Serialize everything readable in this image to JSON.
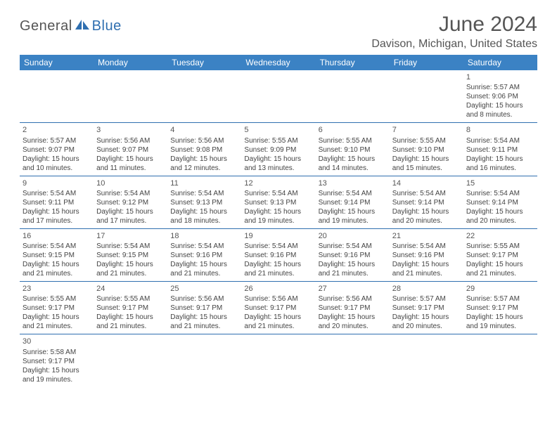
{
  "logo": {
    "text1": "General",
    "text2": "Blue"
  },
  "title": "June 2024",
  "location": "Davison, Michigan, United States",
  "colors": {
    "header_bg": "#3b82c4",
    "header_text": "#ffffff",
    "rule": "#2f6fb0",
    "title_color": "#555555",
    "body_text": "#333333",
    "logo_gray": "#555555",
    "logo_blue": "#2f6fb0"
  },
  "weekdays": [
    "Sunday",
    "Monday",
    "Tuesday",
    "Wednesday",
    "Thursday",
    "Friday",
    "Saturday"
  ],
  "leading_blanks": 6,
  "days": [
    {
      "n": 1,
      "sr": "5:57 AM",
      "ss": "9:06 PM",
      "dl": "15 hours and 8 minutes."
    },
    {
      "n": 2,
      "sr": "5:57 AM",
      "ss": "9:07 PM",
      "dl": "15 hours and 10 minutes."
    },
    {
      "n": 3,
      "sr": "5:56 AM",
      "ss": "9:07 PM",
      "dl": "15 hours and 11 minutes."
    },
    {
      "n": 4,
      "sr": "5:56 AM",
      "ss": "9:08 PM",
      "dl": "15 hours and 12 minutes."
    },
    {
      "n": 5,
      "sr": "5:55 AM",
      "ss": "9:09 PM",
      "dl": "15 hours and 13 minutes."
    },
    {
      "n": 6,
      "sr": "5:55 AM",
      "ss": "9:10 PM",
      "dl": "15 hours and 14 minutes."
    },
    {
      "n": 7,
      "sr": "5:55 AM",
      "ss": "9:10 PM",
      "dl": "15 hours and 15 minutes."
    },
    {
      "n": 8,
      "sr": "5:54 AM",
      "ss": "9:11 PM",
      "dl": "15 hours and 16 minutes."
    },
    {
      "n": 9,
      "sr": "5:54 AM",
      "ss": "9:11 PM",
      "dl": "15 hours and 17 minutes."
    },
    {
      "n": 10,
      "sr": "5:54 AM",
      "ss": "9:12 PM",
      "dl": "15 hours and 17 minutes."
    },
    {
      "n": 11,
      "sr": "5:54 AM",
      "ss": "9:13 PM",
      "dl": "15 hours and 18 minutes."
    },
    {
      "n": 12,
      "sr": "5:54 AM",
      "ss": "9:13 PM",
      "dl": "15 hours and 19 minutes."
    },
    {
      "n": 13,
      "sr": "5:54 AM",
      "ss": "9:14 PM",
      "dl": "15 hours and 19 minutes."
    },
    {
      "n": 14,
      "sr": "5:54 AM",
      "ss": "9:14 PM",
      "dl": "15 hours and 20 minutes."
    },
    {
      "n": 15,
      "sr": "5:54 AM",
      "ss": "9:14 PM",
      "dl": "15 hours and 20 minutes."
    },
    {
      "n": 16,
      "sr": "5:54 AM",
      "ss": "9:15 PM",
      "dl": "15 hours and 21 minutes."
    },
    {
      "n": 17,
      "sr": "5:54 AM",
      "ss": "9:15 PM",
      "dl": "15 hours and 21 minutes."
    },
    {
      "n": 18,
      "sr": "5:54 AM",
      "ss": "9:16 PM",
      "dl": "15 hours and 21 minutes."
    },
    {
      "n": 19,
      "sr": "5:54 AM",
      "ss": "9:16 PM",
      "dl": "15 hours and 21 minutes."
    },
    {
      "n": 20,
      "sr": "5:54 AM",
      "ss": "9:16 PM",
      "dl": "15 hours and 21 minutes."
    },
    {
      "n": 21,
      "sr": "5:54 AM",
      "ss": "9:16 PM",
      "dl": "15 hours and 21 minutes."
    },
    {
      "n": 22,
      "sr": "5:55 AM",
      "ss": "9:17 PM",
      "dl": "15 hours and 21 minutes."
    },
    {
      "n": 23,
      "sr": "5:55 AM",
      "ss": "9:17 PM",
      "dl": "15 hours and 21 minutes."
    },
    {
      "n": 24,
      "sr": "5:55 AM",
      "ss": "9:17 PM",
      "dl": "15 hours and 21 minutes."
    },
    {
      "n": 25,
      "sr": "5:56 AM",
      "ss": "9:17 PM",
      "dl": "15 hours and 21 minutes."
    },
    {
      "n": 26,
      "sr": "5:56 AM",
      "ss": "9:17 PM",
      "dl": "15 hours and 21 minutes."
    },
    {
      "n": 27,
      "sr": "5:56 AM",
      "ss": "9:17 PM",
      "dl": "15 hours and 20 minutes."
    },
    {
      "n": 28,
      "sr": "5:57 AM",
      "ss": "9:17 PM",
      "dl": "15 hours and 20 minutes."
    },
    {
      "n": 29,
      "sr": "5:57 AM",
      "ss": "9:17 PM",
      "dl": "15 hours and 19 minutes."
    },
    {
      "n": 30,
      "sr": "5:58 AM",
      "ss": "9:17 PM",
      "dl": "15 hours and 19 minutes."
    }
  ],
  "labels": {
    "sunrise": "Sunrise:",
    "sunset": "Sunset:",
    "daylight": "Daylight:"
  },
  "typography": {
    "title_pt": 30,
    "location_pt": 16,
    "weekday_pt": 12,
    "daynum_pt": 11,
    "body_pt": 10
  }
}
